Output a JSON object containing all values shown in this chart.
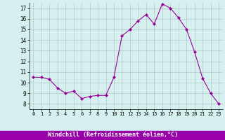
{
  "x": [
    0,
    1,
    2,
    3,
    4,
    5,
    6,
    7,
    8,
    9,
    10,
    11,
    12,
    13,
    14,
    15,
    16,
    17,
    18,
    19,
    20,
    21,
    22,
    23
  ],
  "y": [
    10.5,
    10.5,
    10.3,
    9.5,
    9.0,
    9.2,
    8.5,
    8.7,
    8.8,
    8.8,
    10.5,
    14.4,
    15.0,
    15.8,
    16.4,
    15.5,
    17.4,
    17.0,
    16.1,
    15.0,
    12.9,
    10.4,
    9.0,
    8.0
  ],
  "line_color": "#990099",
  "marker": "D",
  "marker_size": 2.2,
  "bg_color": "#d6f0f0",
  "grid_color": "#b0c8c8",
  "xlabel": "Windchill (Refroidissement éolien,°C)",
  "xlabel_bg": "#9900aa",
  "xlabel_color": "#ffffff",
  "xlim": [
    -0.5,
    23.5
  ],
  "ylim": [
    7.5,
    17.5
  ],
  "yticks": [
    8,
    9,
    10,
    11,
    12,
    13,
    14,
    15,
    16,
    17
  ],
  "xticks": [
    0,
    1,
    2,
    3,
    4,
    5,
    6,
    7,
    8,
    9,
    10,
    11,
    12,
    13,
    14,
    15,
    16,
    17,
    18,
    19,
    20,
    21,
    22,
    23
  ],
  "figsize": [
    3.2,
    2.0
  ],
  "dpi": 100
}
